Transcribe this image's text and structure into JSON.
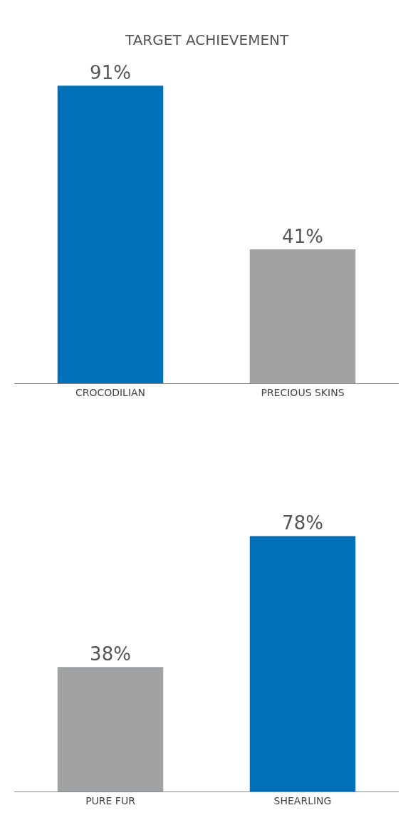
{
  "chart_data": [
    {
      "type": "bar",
      "title": "TARGET ACHIEVEMENT",
      "categories": [
        "CROCODILIAN",
        "PRECIOUS SKINS"
      ],
      "values": [
        91,
        41
      ],
      "colors": [
        "#0070b8",
        "#a0a2a4"
      ],
      "data_labels": true,
      "value_labels": [
        "91%",
        "41%"
      ],
      "tick_labels": "x"
    },
    {
      "type": "bar",
      "categories": [
        "PURE FUR",
        "SHEARLING"
      ],
      "values": [
        38,
        78
      ],
      "colors": [
        "#a0a2a4",
        "#0070b8"
      ],
      "data_labels": true,
      "value_labels": [
        "38%",
        "78%"
      ],
      "tick_labels": "x"
    }
  ]
}
